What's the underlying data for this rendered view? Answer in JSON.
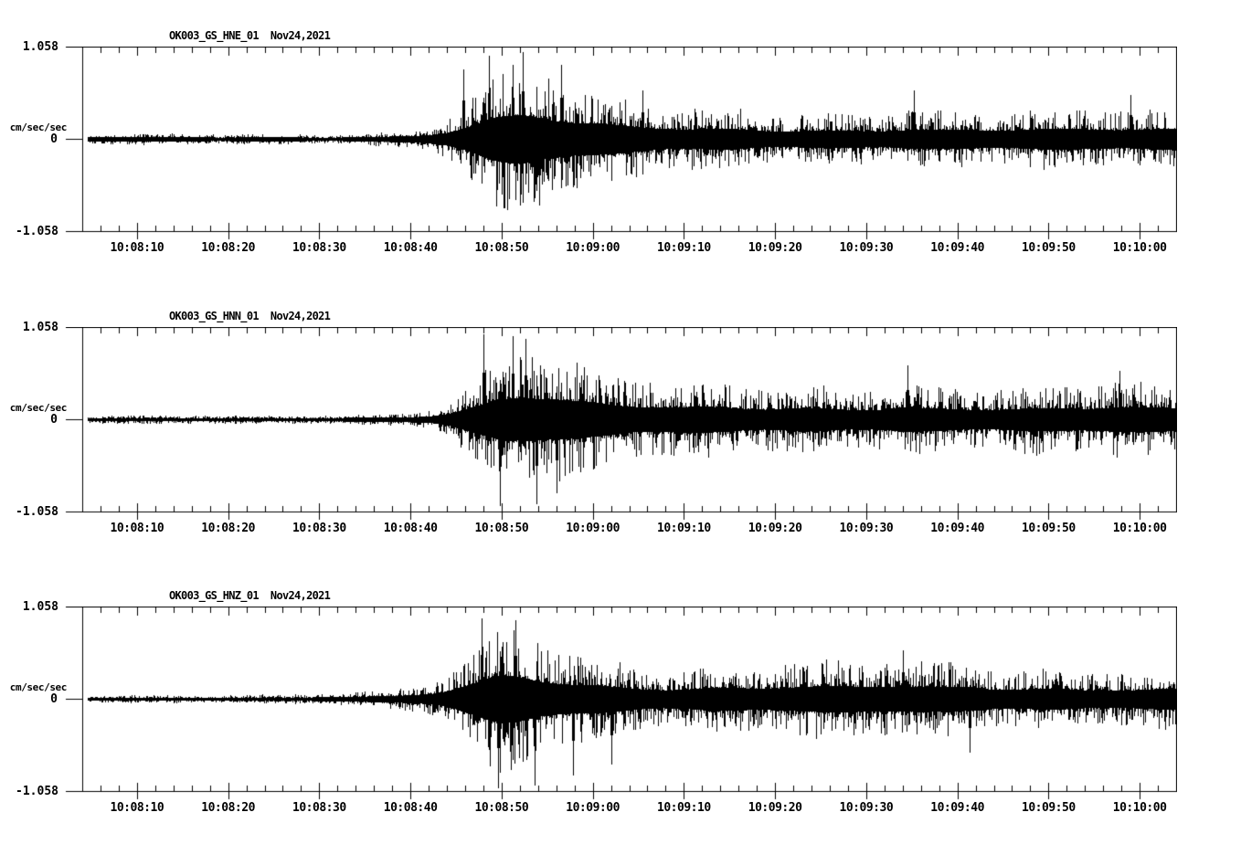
{
  "page": {
    "background": "#ffffff",
    "foreground": "#000000"
  },
  "chart_data": {
    "type": "line",
    "subtype": "seismogram",
    "grid": false,
    "legend": false,
    "units_label": "cm/sec/sec",
    "date_label": "Nov24,2021",
    "y_axis": {
      "max": 1.058,
      "mid": 0,
      "min": -1.058,
      "max_label": "1.058",
      "mid_label": "0",
      "min_label": "-1.058"
    },
    "x_axis": {
      "start_time": "10:08:04",
      "end_time": "10:10:04",
      "duration_seconds": 120,
      "major_tick_seconds": 10,
      "minor_tick_seconds": 2,
      "tick_offsets_seconds": [
        6,
        16,
        26,
        36,
        46,
        56,
        66,
        76,
        86,
        96,
        106,
        116
      ],
      "tick_labels": [
        "10:08:10",
        "10:08:20",
        "10:08:30",
        "10:08:40",
        "10:08:50",
        "10:09:00",
        "10:09:10",
        "10:09:20",
        "10:09:30",
        "10:09:40",
        "10:09:50",
        "10:10:00"
      ]
    },
    "panels": [
      {
        "title": "OK003_GS_HNE_01  Nov24,2021",
        "channel": "HNE",
        "seed": 7,
        "envelope": [
          [
            0,
            0.055
          ],
          [
            22,
            0.055
          ],
          [
            28,
            0.065
          ],
          [
            33,
            0.09
          ],
          [
            36,
            0.12
          ],
          [
            38,
            0.18
          ],
          [
            40,
            0.3
          ],
          [
            42,
            0.48
          ],
          [
            43.5,
            0.65
          ],
          [
            45,
            0.8
          ],
          [
            47,
            0.88
          ],
          [
            48.5,
            0.93
          ],
          [
            50,
            0.85
          ],
          [
            52,
            0.72
          ],
          [
            54,
            0.6
          ],
          [
            57,
            0.5
          ],
          [
            60,
            0.44
          ],
          [
            64,
            0.38
          ],
          [
            68,
            0.35
          ],
          [
            72,
            0.36
          ],
          [
            76,
            0.34
          ],
          [
            80,
            0.37
          ],
          [
            84,
            0.35
          ],
          [
            88,
            0.38
          ],
          [
            91,
            0.45
          ],
          [
            93,
            0.4
          ],
          [
            96,
            0.36
          ],
          [
            100,
            0.34
          ],
          [
            104,
            0.35
          ],
          [
            108,
            0.33
          ],
          [
            112,
            0.34
          ],
          [
            116,
            0.33
          ],
          [
            120,
            0.34
          ]
        ],
        "spikes": [
          [
            41.8,
            0.8
          ],
          [
            44.6,
            0.95
          ],
          [
            46.2,
            -0.8
          ],
          [
            48.3,
            0.99
          ],
          [
            50.1,
            -0.76
          ],
          [
            52.5,
            0.85
          ],
          [
            61.5,
            0.55
          ],
          [
            91.2,
            0.56
          ],
          [
            115,
            0.5
          ]
        ]
      },
      {
        "title": "OK003_GS_HNN_01  Nov24,2021",
        "channel": "HNN",
        "seed": 13,
        "envelope": [
          [
            0,
            0.045
          ],
          [
            22,
            0.045
          ],
          [
            28,
            0.055
          ],
          [
            33,
            0.07
          ],
          [
            36,
            0.1
          ],
          [
            38,
            0.14
          ],
          [
            40,
            0.24
          ],
          [
            42,
            0.42
          ],
          [
            44,
            0.62
          ],
          [
            45.5,
            0.8
          ],
          [
            47,
            0.9
          ],
          [
            49,
            0.93
          ],
          [
            51,
            0.82
          ],
          [
            53,
            0.7
          ],
          [
            56,
            0.57
          ],
          [
            59,
            0.49
          ],
          [
            63,
            0.44
          ],
          [
            67,
            0.42
          ],
          [
            71,
            0.44
          ],
          [
            75,
            0.42
          ],
          [
            79,
            0.46
          ],
          [
            83,
            0.44
          ],
          [
            87,
            0.48
          ],
          [
            90,
            0.54
          ],
          [
            92,
            0.48
          ],
          [
            95,
            0.44
          ],
          [
            98,
            0.42
          ],
          [
            102,
            0.4
          ],
          [
            106,
            0.39
          ],
          [
            110,
            0.4
          ],
          [
            114,
            0.44
          ],
          [
            117,
            0.4
          ],
          [
            120,
            0.39
          ]
        ],
        "spikes": [
          [
            44.0,
            0.97
          ],
          [
            45.8,
            -0.99
          ],
          [
            47.2,
            0.95
          ],
          [
            48.6,
            0.92
          ],
          [
            49.8,
            -0.97
          ],
          [
            52.0,
            -0.85
          ],
          [
            90.5,
            0.62
          ],
          [
            113.8,
            0.56
          ]
        ]
      },
      {
        "title": "OK003_GS_HNZ_01  Nov24,2021",
        "channel": "HNZ",
        "seed": 29,
        "envelope": [
          [
            0,
            0.05
          ],
          [
            22,
            0.05
          ],
          [
            28,
            0.06
          ],
          [
            32,
            0.08
          ],
          [
            35,
            0.11
          ],
          [
            37,
            0.15
          ],
          [
            39,
            0.22
          ],
          [
            41,
            0.38
          ],
          [
            43,
            0.58
          ],
          [
            44.5,
            0.75
          ],
          [
            46,
            0.87
          ],
          [
            48,
            0.9
          ],
          [
            50,
            0.82
          ],
          [
            52,
            0.72
          ],
          [
            55,
            0.6
          ],
          [
            58,
            0.52
          ],
          [
            62,
            0.46
          ],
          [
            66,
            0.42
          ],
          [
            70,
            0.44
          ],
          [
            74,
            0.42
          ],
          [
            78,
            0.44
          ],
          [
            82,
            0.42
          ],
          [
            86,
            0.44
          ],
          [
            90,
            0.46
          ],
          [
            94,
            0.42
          ],
          [
            98,
            0.44
          ],
          [
            102,
            0.4
          ],
          [
            106,
            0.42
          ],
          [
            110,
            0.4
          ],
          [
            114,
            0.42
          ],
          [
            117,
            0.4
          ],
          [
            120,
            0.42
          ]
        ],
        "spikes": [
          [
            43.8,
            0.92
          ],
          [
            45.6,
            -1.03
          ],
          [
            47.5,
            0.9
          ],
          [
            49.6,
            -0.99
          ],
          [
            53.8,
            -0.88
          ],
          [
            58.0,
            -0.75
          ],
          [
            90.0,
            0.56
          ],
          [
            97.3,
            -0.62
          ]
        ]
      }
    ]
  }
}
